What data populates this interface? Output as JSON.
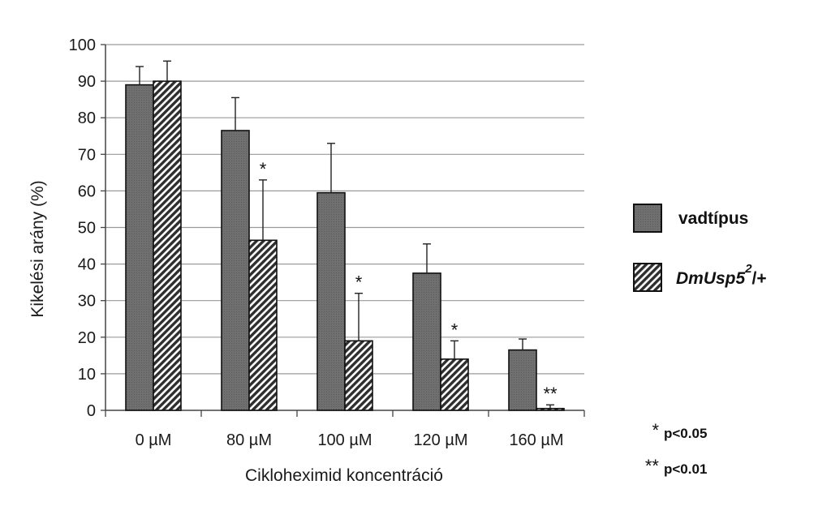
{
  "chart_data": {
    "type": "bar",
    "title": "",
    "xlabel": "Cikloheximid koncentráció",
    "ylabel": "Kikelési arány (%)",
    "ylim": [
      0,
      100
    ],
    "yticks": [
      0,
      10,
      20,
      30,
      40,
      50,
      60,
      70,
      80,
      90,
      100
    ],
    "categories": [
      "0 µM",
      "80 µM",
      "100 µM",
      "120 µM",
      "160 µM"
    ],
    "grid": true,
    "legend_position": "right",
    "series": [
      {
        "name": "vadtípus",
        "fill": "solid-dark",
        "color": "#6b6b6b",
        "values": [
          89,
          76.5,
          59.5,
          37.5,
          16.5
        ],
        "errors": [
          5,
          9,
          13.5,
          8,
          3
        ],
        "annotations": [
          "",
          "",
          "",
          "",
          ""
        ]
      },
      {
        "name": "DmUsp5",
        "name_superscript": "2",
        "name_suffix": "/+",
        "fill": "hatched",
        "color": "#4a4a4a",
        "values": [
          90,
          46.5,
          19,
          14,
          0.5
        ],
        "errors": [
          5.5,
          16.5,
          13,
          5,
          1
        ],
        "annotations": [
          "",
          "*",
          "*",
          "*",
          "**"
        ]
      }
    ],
    "significance_notes": [
      {
        "symbol": "*",
        "text": "p<0.05"
      },
      {
        "symbol": "**",
        "text": "p<0.01"
      }
    ]
  }
}
